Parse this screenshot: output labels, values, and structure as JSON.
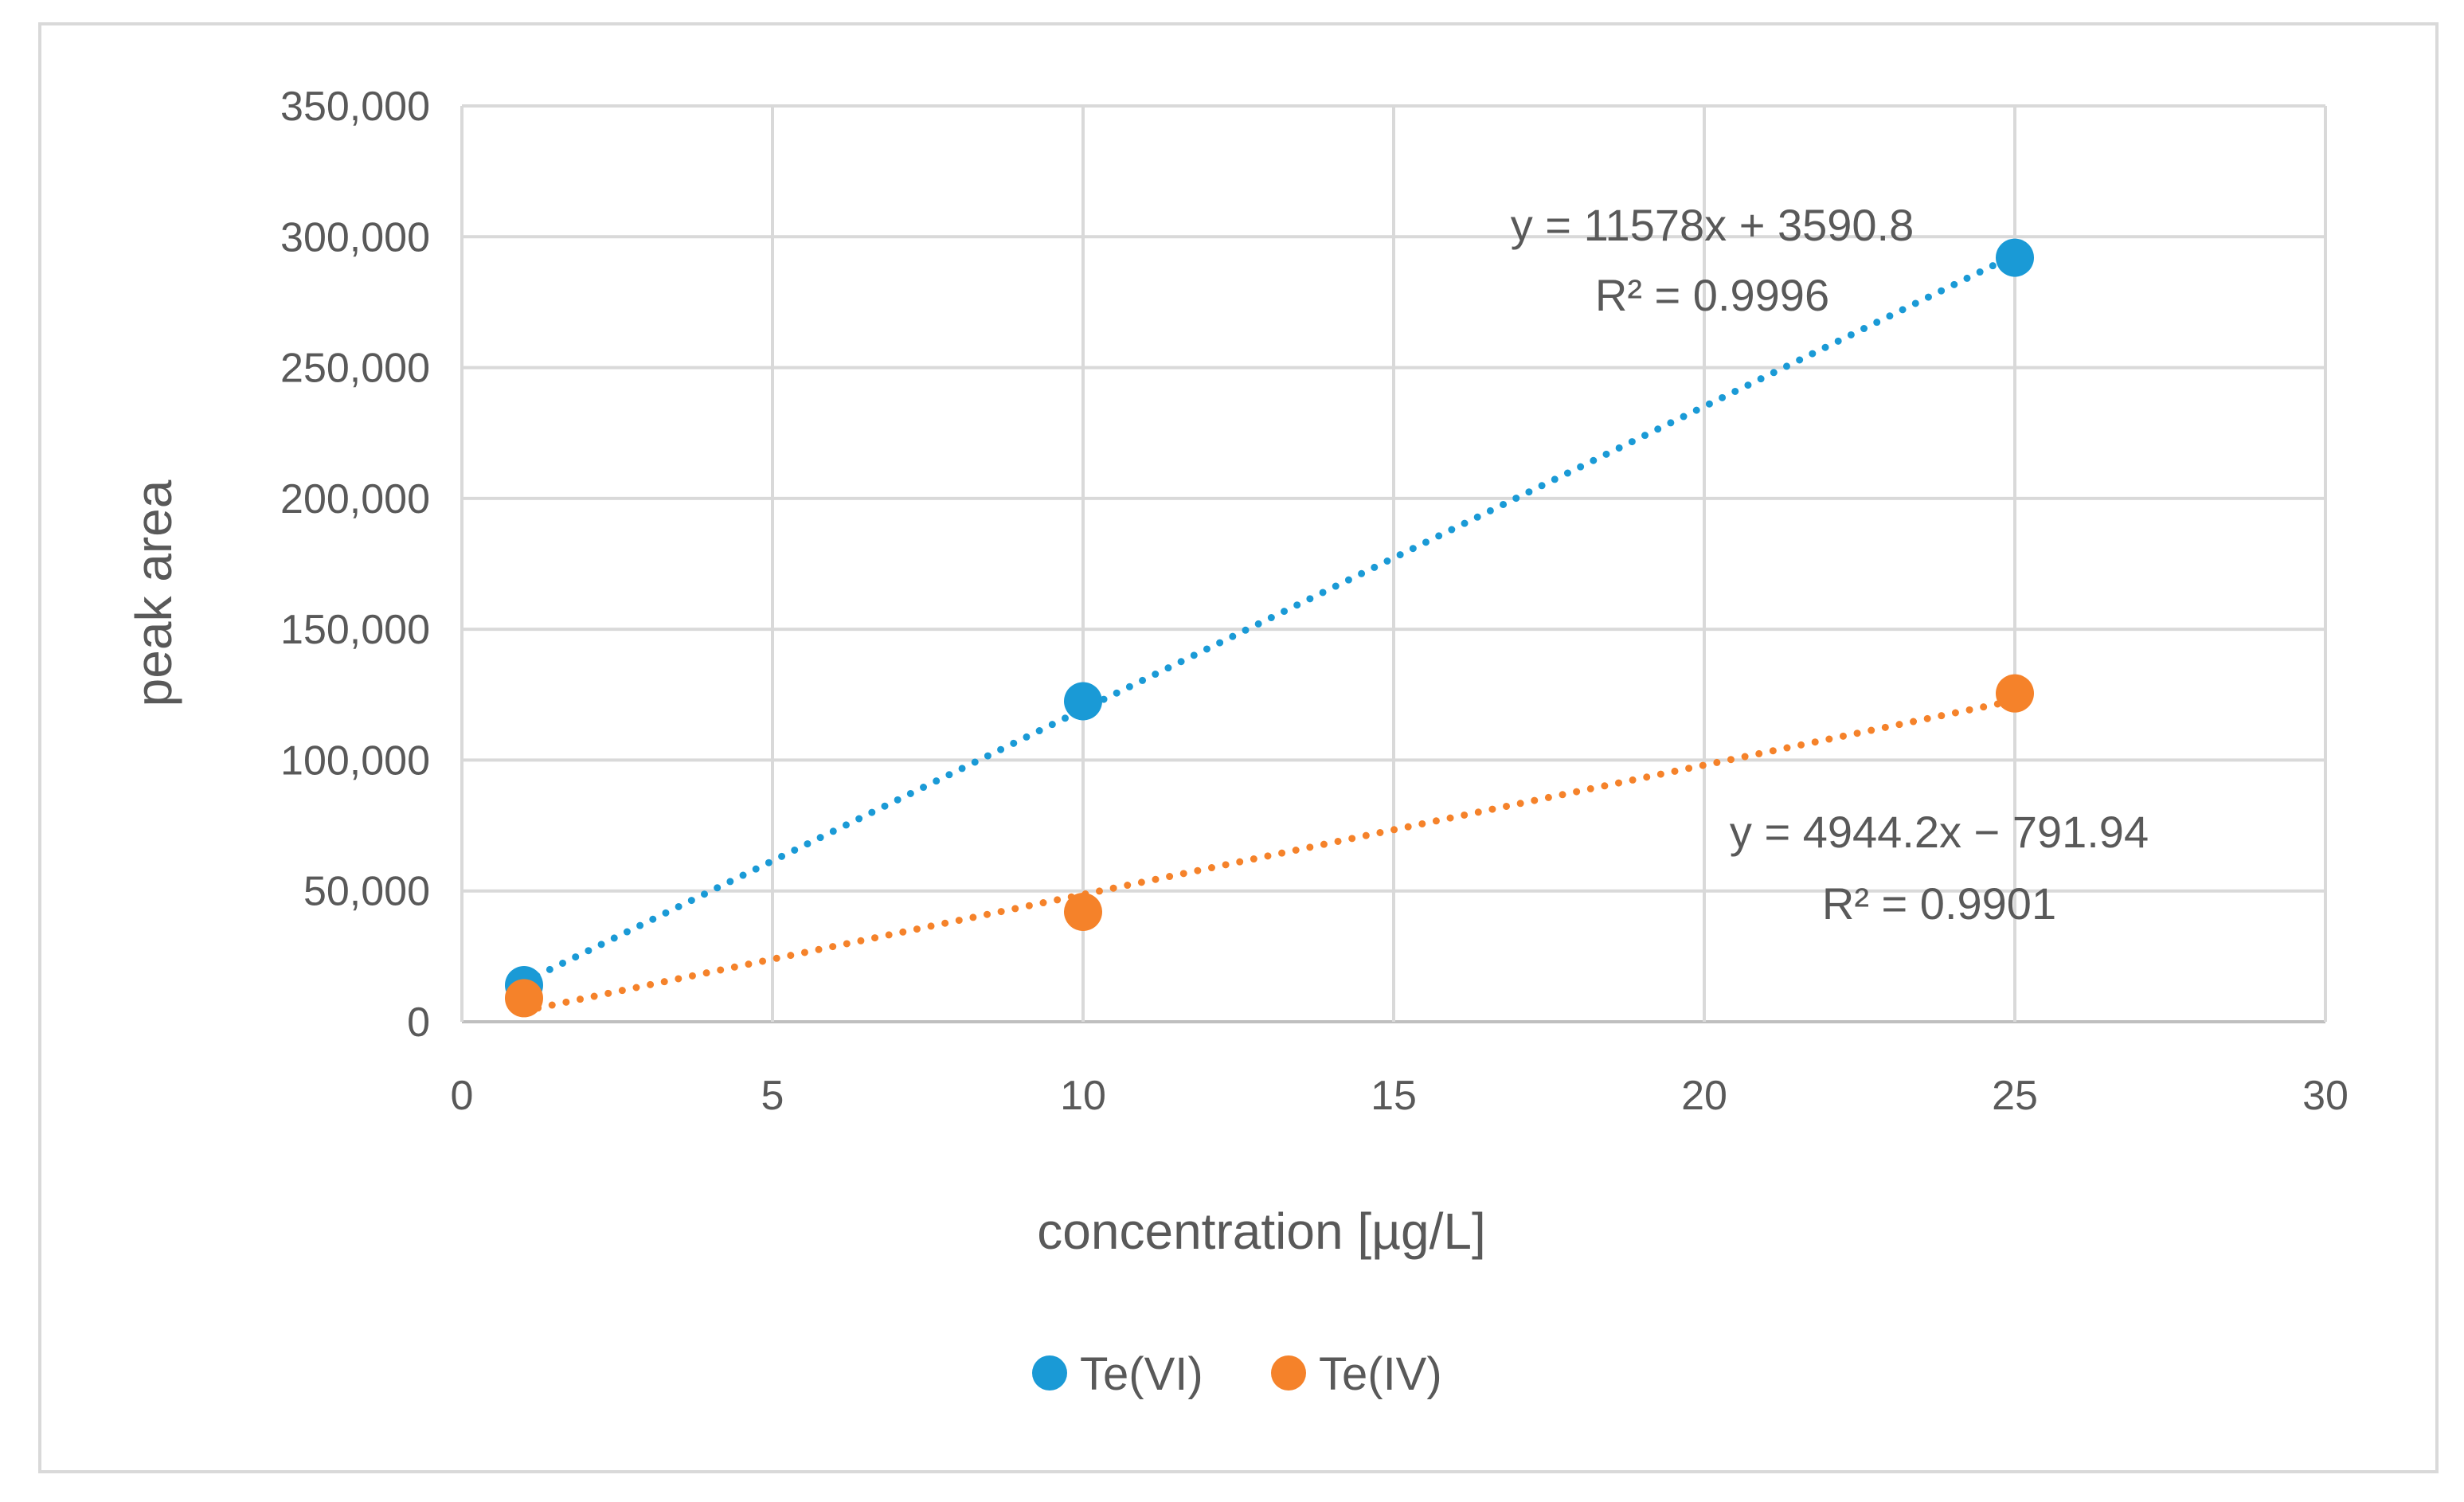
{
  "chart_data": {
    "type": "scatter",
    "title": "",
    "xlabel": "concentration [µg/L]",
    "ylabel": "peak area",
    "xlim": [
      0,
      30
    ],
    "ylim": [
      0,
      350000
    ],
    "x_ticks": [
      0,
      5,
      10,
      15,
      20,
      25,
      30
    ],
    "x_tick_labels": [
      "0",
      "5",
      "10",
      "15",
      "20",
      "25",
      "30"
    ],
    "y_ticks": [
      0,
      50000,
      100000,
      150000,
      200000,
      250000,
      300000,
      350000
    ],
    "y_tick_labels": [
      "0",
      "50,000",
      "100,000",
      "150,000",
      "200,000",
      "250,000",
      "300,000",
      "350,000"
    ],
    "grid": true,
    "legend_position": "bottom",
    "series": [
      {
        "name": "Te(VI)",
        "color": "#1a9ad6",
        "x": [
          1,
          10,
          25
        ],
        "y": [
          14000,
          122500,
          292000
        ],
        "trendline": {
          "slope": 11578,
          "intercept": 3590.8,
          "x_range": [
            1,
            25
          ]
        },
        "equation": "y = 11578x + 3590.8",
        "r2_label": "R² = 0.9996"
      },
      {
        "name": "Te(IV)",
        "color": "#f5822a",
        "x": [
          1,
          10,
          25
        ],
        "y": [
          9000,
          42000,
          125500
        ],
        "trendline": {
          "slope": 4944.2,
          "intercept": -791.94,
          "x_range": [
            1,
            25
          ]
        },
        "equation": "y = 4944.2x − 791.94",
        "r2_label": "R² = 0.9901"
      }
    ]
  }
}
